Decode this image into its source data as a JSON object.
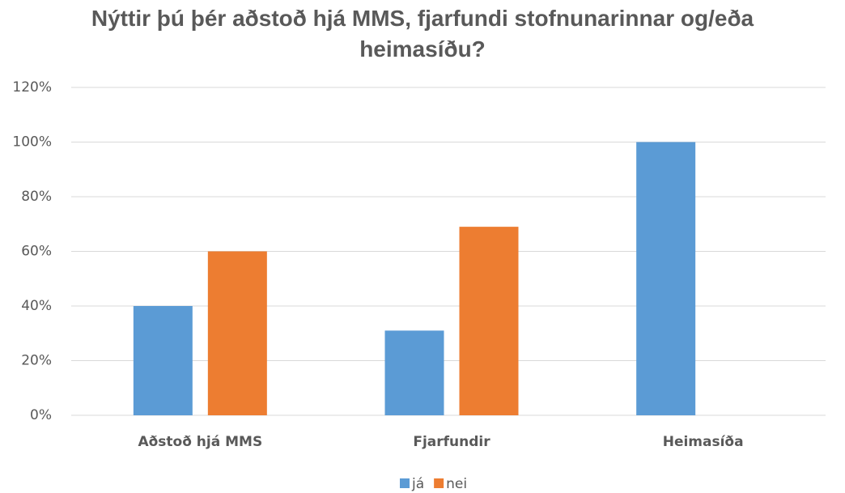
{
  "chart_data": {
    "type": "bar",
    "title": "Nýttir þú þér aðstoð hjá MMS, fjarfundi stofnunarinnar og/eða heimasíðu?",
    "categories": [
      "Aðstoð hjá MMS",
      "Fjarfundir",
      "Heimasíða"
    ],
    "series": [
      {
        "name": "já",
        "color": "#5b9bd5",
        "values": [
          40,
          31,
          100
        ]
      },
      {
        "name": "nei",
        "color": "#ed7d31",
        "values": [
          60,
          69,
          0
        ]
      }
    ],
    "ylim": [
      0,
      120
    ],
    "yticks": [
      {
        "value": 0,
        "label": "0%"
      },
      {
        "value": 20,
        "label": "20%"
      },
      {
        "value": 40,
        "label": "40%"
      },
      {
        "value": 60,
        "label": "60%"
      },
      {
        "value": 80,
        "label": "80%"
      },
      {
        "value": 100,
        "label": "100%"
      },
      {
        "value": 120,
        "label": "120%"
      }
    ],
    "grid": true,
    "legend": "bottom"
  }
}
